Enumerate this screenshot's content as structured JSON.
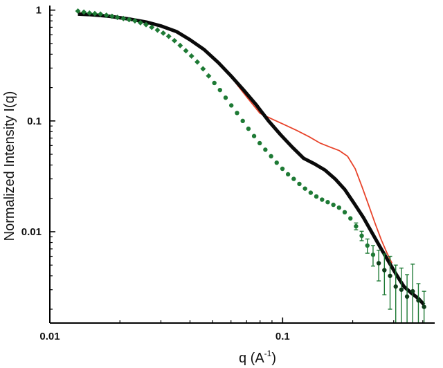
{
  "chart_data": {
    "type": "scatter",
    "title": "",
    "xlabel": "q (A",
    "xlabel_superscript": "-1",
    "xlabel_suffix": ")",
    "ylabel": "Normalized Intensity I(q)",
    "xscale": "log",
    "yscale": "log",
    "xlim": [
      0.01,
      0.45
    ],
    "ylim": [
      0.0015,
      1.1
    ],
    "grid": false,
    "legend": "none",
    "x_ticks": [
      {
        "value": 0.01,
        "label": "0.01"
      },
      {
        "value": 0.1,
        "label": "0.1"
      }
    ],
    "y_ticks": [
      {
        "value": 1,
        "label": "1"
      },
      {
        "value": 0.1,
        "label": "0.1"
      },
      {
        "value": 0.01,
        "label": "0.01"
      }
    ],
    "colors": {
      "data_points": "#1e7a35",
      "data_points_dark": "#0f3d1a",
      "fit_black": "#0a0a0a",
      "fit_red": "#e8432a"
    },
    "series": [
      {
        "kind": "points_with_error_bars",
        "x": [
          0.0132,
          0.014,
          0.0148,
          0.0156,
          0.0165,
          0.0175,
          0.0185,
          0.0195,
          0.0207,
          0.0219,
          0.0232,
          0.0245,
          0.0259,
          0.0274,
          0.029,
          0.0307,
          0.0324,
          0.0343,
          0.0363,
          0.0384,
          0.0406,
          0.043,
          0.0455,
          0.0481,
          0.0509,
          0.0538,
          0.0569,
          0.0602,
          0.0637,
          0.0674,
          0.0713,
          0.0754,
          0.0797,
          0.0843,
          0.0892,
          0.0943,
          0.0998,
          0.1055,
          0.1116,
          0.118,
          0.1248,
          0.132,
          0.1396,
          0.1477,
          0.1562,
          0.1652,
          0.1747,
          0.1848,
          0.1955,
          0.2067,
          0.2186,
          0.2312,
          0.2446,
          0.2587,
          0.2736,
          0.2894,
          0.3061,
          0.3237,
          0.3424,
          0.3621,
          0.383,
          0.4051
        ],
        "y": [
          0.98,
          0.96,
          0.94,
          0.93,
          0.92,
          0.9,
          0.88,
          0.86,
          0.84,
          0.82,
          0.8,
          0.77,
          0.74,
          0.7,
          0.66,
          0.62,
          0.58,
          0.53,
          0.48,
          0.43,
          0.385,
          0.34,
          0.295,
          0.255,
          0.22,
          0.19,
          0.162,
          0.138,
          0.118,
          0.1,
          0.085,
          0.073,
          0.063,
          0.055,
          0.048,
          0.042,
          0.037,
          0.033,
          0.03,
          0.027,
          0.0245,
          0.0225,
          0.0208,
          0.0195,
          0.0185,
          0.0175,
          0.0165,
          0.015,
          0.0132,
          0.0112,
          0.0092,
          0.0075,
          0.0062,
          0.0052,
          0.0045,
          0.004,
          0.0032,
          0.003,
          0.0026,
          0.0029,
          0.0024,
          0.0021
        ],
        "err": [
          0,
          0,
          0,
          0,
          0,
          0,
          0,
          0,
          0,
          0,
          0,
          0,
          0,
          0,
          0,
          0,
          0,
          0,
          0,
          0,
          0,
          0,
          0,
          0,
          0,
          0,
          0,
          0,
          0,
          0,
          0,
          0,
          0,
          0,
          0,
          0,
          0,
          0,
          0,
          0,
          0,
          0,
          0,
          0,
          0,
          0,
          0,
          0,
          0,
          0.0008,
          0.0009,
          0.0011,
          0.0013,
          0.0016,
          0.0018,
          0.002,
          0.0018,
          0.0017,
          0.0015,
          0.0022,
          0.001,
          0.0008
        ]
      },
      {
        "kind": "fit_line_black",
        "x": [
          0.0132,
          0.015,
          0.018,
          0.022,
          0.026,
          0.03,
          0.035,
          0.04,
          0.046,
          0.053,
          0.06,
          0.068,
          0.077,
          0.087,
          0.098,
          0.11,
          0.123,
          0.137,
          0.152,
          0.168,
          0.185,
          0.203,
          0.222,
          0.242,
          0.263,
          0.285,
          0.308,
          0.332,
          0.357,
          0.383,
          0.405
        ],
        "y": [
          0.92,
          0.91,
          0.88,
          0.83,
          0.78,
          0.72,
          0.64,
          0.54,
          0.44,
          0.335,
          0.255,
          0.19,
          0.14,
          0.1,
          0.075,
          0.058,
          0.046,
          0.041,
          0.036,
          0.03,
          0.024,
          0.018,
          0.0135,
          0.0098,
          0.0072,
          0.0054,
          0.0041,
          0.0032,
          0.0028,
          0.0025,
          0.0022
        ]
      },
      {
        "kind": "fit_line_red",
        "x": [
          0.0132,
          0.018,
          0.024,
          0.03,
          0.037,
          0.044,
          0.052,
          0.06,
          0.07,
          0.08,
          0.09,
          0.1,
          0.115,
          0.13,
          0.145,
          0.16,
          0.175,
          0.19,
          0.205,
          0.22,
          0.235,
          0.25,
          0.265,
          0.28,
          0.295
        ],
        "y": [
          0.95,
          0.88,
          0.82,
          0.72,
          0.6,
          0.47,
          0.35,
          0.25,
          0.165,
          0.117,
          0.104,
          0.094,
          0.082,
          0.072,
          0.063,
          0.058,
          0.054,
          0.048,
          0.037,
          0.025,
          0.017,
          0.0118,
          0.0085,
          0.0065,
          0.0052
        ]
      }
    ]
  }
}
